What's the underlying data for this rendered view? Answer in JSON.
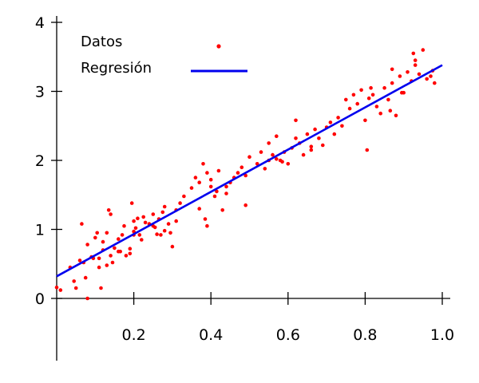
{
  "chart_data": {
    "type": "scatter",
    "xlim": [
      0.0,
      1.0
    ],
    "ylim": [
      0,
      4
    ],
    "xticks": [
      0.2,
      0.4,
      0.6,
      0.8,
      1.0
    ],
    "xtick_labels": [
      "0.2",
      "0.4",
      "0.6",
      "0.8",
      "1.0"
    ],
    "yticks": [
      0,
      1,
      2,
      3,
      4
    ],
    "ytick_labels": [
      "0",
      "1",
      "2",
      "3",
      "4"
    ],
    "grid": false,
    "legend": {
      "placement": "top-left"
    },
    "series": [
      {
        "name": "Datos",
        "kind": "scatter",
        "color": "#ff0000",
        "points": [
          [
            0.0,
            0.16
          ],
          [
            0.01,
            0.12
          ],
          [
            0.035,
            0.45
          ],
          [
            0.045,
            0.25
          ],
          [
            0.05,
            0.15
          ],
          [
            0.06,
            0.55
          ],
          [
            0.065,
            1.08
          ],
          [
            0.07,
            0.52
          ],
          [
            0.075,
            0.3
          ],
          [
            0.08,
            0.0
          ],
          [
            0.08,
            0.78
          ],
          [
            0.09,
            0.6
          ],
          [
            0.1,
            0.88
          ],
          [
            0.105,
            0.95
          ],
          [
            0.11,
            0.45
          ],
          [
            0.11,
            0.58
          ],
          [
            0.115,
            0.15
          ],
          [
            0.12,
            0.82
          ],
          [
            0.12,
            0.7
          ],
          [
            0.13,
            0.48
          ],
          [
            0.13,
            0.95
          ],
          [
            0.135,
            1.28
          ],
          [
            0.14,
            1.22
          ],
          [
            0.14,
            0.62
          ],
          [
            0.15,
            0.73
          ],
          [
            0.16,
            0.68
          ],
          [
            0.16,
            0.86
          ],
          [
            0.17,
            0.92
          ],
          [
            0.175,
            1.05
          ],
          [
            0.18,
            0.62
          ],
          [
            0.19,
            0.65
          ],
          [
            0.19,
            0.72
          ],
          [
            0.195,
            1.38
          ],
          [
            0.2,
            1.12
          ],
          [
            0.2,
            0.97
          ],
          [
            0.205,
            1.02
          ],
          [
            0.21,
            1.16
          ],
          [
            0.215,
            0.92
          ],
          [
            0.22,
            0.85
          ],
          [
            0.225,
            1.18
          ],
          [
            0.23,
            1.1
          ],
          [
            0.24,
            1.08
          ],
          [
            0.25,
            1.22
          ],
          [
            0.255,
            1.03
          ],
          [
            0.26,
            0.93
          ],
          [
            0.265,
            1.15
          ],
          [
            0.27,
            0.92
          ],
          [
            0.275,
            1.25
          ],
          [
            0.28,
            1.33
          ],
          [
            0.28,
            0.98
          ],
          [
            0.29,
            1.08
          ],
          [
            0.295,
            0.95
          ],
          [
            0.3,
            0.75
          ],
          [
            0.31,
            1.12
          ],
          [
            0.31,
            1.28
          ],
          [
            0.32,
            1.38
          ],
          [
            0.33,
            1.48
          ],
          [
            0.36,
            1.75
          ],
          [
            0.37,
            1.68
          ],
          [
            0.37,
            1.3
          ],
          [
            0.38,
            1.95
          ],
          [
            0.385,
            1.15
          ],
          [
            0.39,
            1.05
          ],
          [
            0.39,
            1.82
          ],
          [
            0.4,
            1.62
          ],
          [
            0.4,
            1.72
          ],
          [
            0.41,
            1.48
          ],
          [
            0.415,
            1.55
          ],
          [
            0.42,
            1.85
          ],
          [
            0.43,
            1.28
          ],
          [
            0.44,
            1.62
          ],
          [
            0.45,
            1.68
          ],
          [
            0.46,
            1.75
          ],
          [
            0.47,
            1.82
          ],
          [
            0.48,
            1.9
          ],
          [
            0.49,
            1.35
          ],
          [
            0.49,
            1.78
          ],
          [
            0.5,
            2.05
          ],
          [
            0.52,
            1.95
          ],
          [
            0.53,
            2.12
          ],
          [
            0.54,
            1.88
          ],
          [
            0.55,
            2.25
          ],
          [
            0.56,
            2.08
          ],
          [
            0.57,
            2.35
          ],
          [
            0.58,
            2.0
          ],
          [
            0.59,
            2.12
          ],
          [
            0.6,
            1.95
          ],
          [
            0.61,
            2.18
          ],
          [
            0.62,
            2.32
          ],
          [
            0.63,
            2.25
          ],
          [
            0.64,
            2.08
          ],
          [
            0.65,
            2.38
          ],
          [
            0.66,
            2.2
          ],
          [
            0.67,
            2.45
          ],
          [
            0.68,
            2.32
          ],
          [
            0.69,
            2.22
          ],
          [
            0.7,
            2.48
          ],
          [
            0.71,
            2.55
          ],
          [
            0.72,
            2.38
          ],
          [
            0.73,
            2.62
          ],
          [
            0.74,
            2.5
          ],
          [
            0.75,
            2.88
          ],
          [
            0.76,
            2.75
          ],
          [
            0.77,
            2.95
          ],
          [
            0.78,
            2.82
          ],
          [
            0.79,
            3.02
          ],
          [
            0.8,
            2.58
          ],
          [
            0.805,
            2.15
          ],
          [
            0.81,
            2.9
          ],
          [
            0.82,
            2.95
          ],
          [
            0.83,
            2.78
          ],
          [
            0.84,
            2.68
          ],
          [
            0.85,
            3.05
          ],
          [
            0.86,
            2.88
          ],
          [
            0.865,
            2.72
          ],
          [
            0.87,
            3.12
          ],
          [
            0.88,
            2.65
          ],
          [
            0.89,
            3.22
          ],
          [
            0.9,
            2.98
          ],
          [
            0.91,
            3.28
          ],
          [
            0.92,
            3.15
          ],
          [
            0.925,
            3.55
          ],
          [
            0.93,
            3.38
          ],
          [
            0.94,
            3.25
          ],
          [
            0.95,
            3.6
          ],
          [
            0.96,
            3.18
          ],
          [
            0.97,
            3.22
          ],
          [
            0.975,
            3.3
          ],
          [
            0.98,
            3.12
          ],
          [
            0.87,
            3.32
          ],
          [
            0.93,
            3.45
          ],
          [
            0.895,
            2.98
          ],
          [
            0.815,
            3.05
          ],
          [
            0.62,
            2.58
          ],
          [
            0.66,
            2.15
          ],
          [
            0.44,
            1.52
          ],
          [
            0.55,
            2.0
          ],
          [
            0.57,
            2.02
          ],
          [
            0.585,
            1.98
          ],
          [
            0.35,
            1.6
          ],
          [
            0.25,
            1.05
          ],
          [
            0.2,
            0.92
          ],
          [
            0.165,
            0.68
          ],
          [
            0.145,
            0.52
          ],
          [
            0.095,
            0.58
          ]
        ]
      },
      {
        "name": "Regresión",
        "kind": "line",
        "color": "#0000ee",
        "x": [
          0.0,
          1.0
        ],
        "y": [
          0.32,
          3.38
        ]
      }
    ]
  }
}
